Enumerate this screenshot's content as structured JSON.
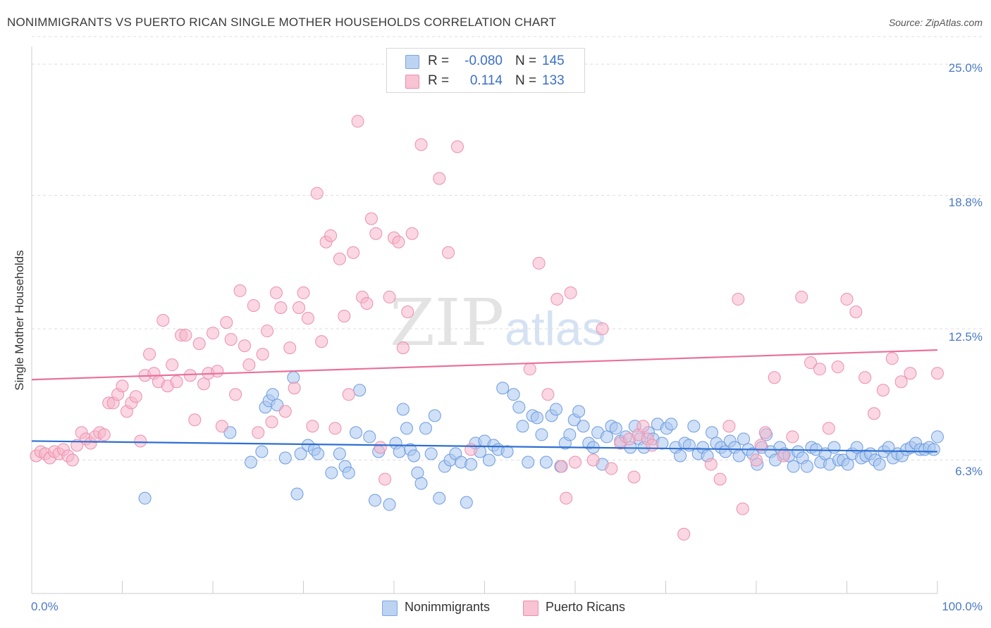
{
  "title": "NONIMMIGRANTS VS PUERTO RICAN SINGLE MOTHER HOUSEHOLDS CORRELATION CHART",
  "source": "Source: ZipAtlas.com",
  "watermark": {
    "zip": "ZIP",
    "atlas": "atlas"
  },
  "stats": {
    "rows": [
      {
        "r_label": "R =",
        "r_value": "-0.080",
        "n_label": "N =",
        "n_value": "145"
      },
      {
        "r_label": "R =",
        "r_value": "0.114",
        "n_label": "N =",
        "n_value": "133"
      }
    ]
  },
  "legend": {
    "items": [
      "Nonimmigrants",
      "Puerto Ricans"
    ]
  },
  "colors": {
    "blue_fill": "#a9c6ee",
    "blue_stroke": "#6e9be0",
    "blue_line": "#2f6fd0",
    "pink_fill": "#f6b6ca",
    "pink_stroke": "#ec8fad",
    "pink_line": "#e8729a",
    "tick_label": "#4a79c7",
    "grid": "#dddddd"
  },
  "chart_data": {
    "type": "scatter",
    "title": "NONIMMIGRANTS VS PUERTO RICAN SINGLE MOTHER HOUSEHOLDS CORRELATION CHART",
    "xlabel": "",
    "ylabel": "Single Mother Households",
    "x_tick_labels": [
      "0.0%",
      "100.0%"
    ],
    "y_tick_labels": [
      "6.3%",
      "12.5%",
      "18.8%",
      "25.0%"
    ],
    "xlim": [
      0,
      100
    ],
    "ylim": [
      0,
      26.3
    ],
    "grid": true,
    "series": [
      {
        "name": "Nonimmigrants",
        "color": "#a9c6ee",
        "trend": [
          [
            0,
            7.2
          ],
          [
            100,
            6.7
          ]
        ],
        "points": [
          [
            12.5,
            4.5
          ],
          [
            21.9,
            7.6
          ],
          [
            24.2,
            6.2
          ],
          [
            25.4,
            6.7
          ],
          [
            25.8,
            8.8
          ],
          [
            26.2,
            9.1
          ],
          [
            26.6,
            9.4
          ],
          [
            27.1,
            8.9
          ],
          [
            28.0,
            6.4
          ],
          [
            28.9,
            10.2
          ],
          [
            29.3,
            4.7
          ],
          [
            29.7,
            6.6
          ],
          [
            30.5,
            7.0
          ],
          [
            31.2,
            6.8
          ],
          [
            31.6,
            6.6
          ],
          [
            33.1,
            5.7
          ],
          [
            34.0,
            6.6
          ],
          [
            34.6,
            6.0
          ],
          [
            35.0,
            5.7
          ],
          [
            35.8,
            7.6
          ],
          [
            36.2,
            9.6
          ],
          [
            37.3,
            7.4
          ],
          [
            37.9,
            4.4
          ],
          [
            38.3,
            6.7
          ],
          [
            39.5,
            4.2
          ],
          [
            40.2,
            7.1
          ],
          [
            40.6,
            6.7
          ],
          [
            41.0,
            8.7
          ],
          [
            41.4,
            7.8
          ],
          [
            41.8,
            6.8
          ],
          [
            42.2,
            6.5
          ],
          [
            42.6,
            5.7
          ],
          [
            43.0,
            5.2
          ],
          [
            43.5,
            7.8
          ],
          [
            44.1,
            6.6
          ],
          [
            44.5,
            8.4
          ],
          [
            45.0,
            4.5
          ],
          [
            45.6,
            6.0
          ],
          [
            46.2,
            6.3
          ],
          [
            46.8,
            6.6
          ],
          [
            47.4,
            6.2
          ],
          [
            48.0,
            4.3
          ],
          [
            48.5,
            6.1
          ],
          [
            49.0,
            7.1
          ],
          [
            49.5,
            6.7
          ],
          [
            50.0,
            7.2
          ],
          [
            50.5,
            6.3
          ],
          [
            51.0,
            7.0
          ],
          [
            51.5,
            6.8
          ],
          [
            52.0,
            9.7
          ],
          [
            52.5,
            6.7
          ],
          [
            53.2,
            9.4
          ],
          [
            53.8,
            8.8
          ],
          [
            54.2,
            7.9
          ],
          [
            54.8,
            6.2
          ],
          [
            55.3,
            8.4
          ],
          [
            55.8,
            8.3
          ],
          [
            56.3,
            7.5
          ],
          [
            56.8,
            6.2
          ],
          [
            57.4,
            8.4
          ],
          [
            57.9,
            8.7
          ],
          [
            58.4,
            6.0
          ],
          [
            58.9,
            7.1
          ],
          [
            59.4,
            7.5
          ],
          [
            59.9,
            8.2
          ],
          [
            60.4,
            8.6
          ],
          [
            60.9,
            7.9
          ],
          [
            61.5,
            7.1
          ],
          [
            62.0,
            6.9
          ],
          [
            62.5,
            7.6
          ],
          [
            63.0,
            6.1
          ],
          [
            63.5,
            7.4
          ],
          [
            64.0,
            7.9
          ],
          [
            64.5,
            7.8
          ],
          [
            65.0,
            7.2
          ],
          [
            65.6,
            7.4
          ],
          [
            66.1,
            6.9
          ],
          [
            66.6,
            7.9
          ],
          [
            67.1,
            7.3
          ],
          [
            67.6,
            6.9
          ],
          [
            68.1,
            7.6
          ],
          [
            68.6,
            7.3
          ],
          [
            69.1,
            8.0
          ],
          [
            69.6,
            7.1
          ],
          [
            70.1,
            7.8
          ],
          [
            70.6,
            8.0
          ],
          [
            71.1,
            6.9
          ],
          [
            71.6,
            6.5
          ],
          [
            72.1,
            7.1
          ],
          [
            72.6,
            7.0
          ],
          [
            73.1,
            7.9
          ],
          [
            73.6,
            6.6
          ],
          [
            74.1,
            6.9
          ],
          [
            74.6,
            6.5
          ],
          [
            75.1,
            7.6
          ],
          [
            75.6,
            7.1
          ],
          [
            76.1,
            6.9
          ],
          [
            76.6,
            6.7
          ],
          [
            77.1,
            7.2
          ],
          [
            77.6,
            6.9
          ],
          [
            78.1,
            6.5
          ],
          [
            78.6,
            7.3
          ],
          [
            79.1,
            6.8
          ],
          [
            79.6,
            6.6
          ],
          [
            80.1,
            6.1
          ],
          [
            80.6,
            6.9
          ],
          [
            81.1,
            7.5
          ],
          [
            81.6,
            6.7
          ],
          [
            82.1,
            6.3
          ],
          [
            82.6,
            6.9
          ],
          [
            83.1,
            6.6
          ],
          [
            83.6,
            6.5
          ],
          [
            84.1,
            6.0
          ],
          [
            84.6,
            6.7
          ],
          [
            85.1,
            6.4
          ],
          [
            85.6,
            6.0
          ],
          [
            86.1,
            6.9
          ],
          [
            86.6,
            6.8
          ],
          [
            87.1,
            6.2
          ],
          [
            87.6,
            6.6
          ],
          [
            88.1,
            6.1
          ],
          [
            88.6,
            6.9
          ],
          [
            89.1,
            6.3
          ],
          [
            89.6,
            6.3
          ],
          [
            90.1,
            6.1
          ],
          [
            90.6,
            6.6
          ],
          [
            91.1,
            6.9
          ],
          [
            91.6,
            6.4
          ],
          [
            92.1,
            6.5
          ],
          [
            92.6,
            6.6
          ],
          [
            93.1,
            6.3
          ],
          [
            93.6,
            6.1
          ],
          [
            94.1,
            6.7
          ],
          [
            94.6,
            6.9
          ],
          [
            95.1,
            6.4
          ],
          [
            95.6,
            6.6
          ],
          [
            96.1,
            6.5
          ],
          [
            96.6,
            6.8
          ],
          [
            97.1,
            6.9
          ],
          [
            97.6,
            7.1
          ],
          [
            98.1,
            6.8
          ],
          [
            98.6,
            6.8
          ],
          [
            99.1,
            6.9
          ],
          [
            99.6,
            6.8
          ],
          [
            100.0,
            7.4
          ]
        ]
      },
      {
        "name": "Puerto Ricans",
        "color": "#f6b6ca",
        "trend": [
          [
            0,
            10.1
          ],
          [
            100,
            11.5
          ]
        ],
        "points": [
          [
            0.5,
            6.5
          ],
          [
            1.0,
            6.7
          ],
          [
            1.5,
            6.6
          ],
          [
            2.0,
            6.4
          ],
          [
            2.5,
            6.7
          ],
          [
            3.0,
            6.6
          ],
          [
            3.5,
            6.8
          ],
          [
            4.0,
            6.5
          ],
          [
            4.5,
            6.3
          ],
          [
            5.0,
            7.0
          ],
          [
            5.5,
            7.6
          ],
          [
            6.0,
            7.3
          ],
          [
            6.5,
            7.1
          ],
          [
            7.0,
            7.4
          ],
          [
            7.5,
            7.6
          ],
          [
            8.0,
            7.5
          ],
          [
            8.5,
            9.0
          ],
          [
            9.0,
            9.0
          ],
          [
            9.5,
            9.4
          ],
          [
            10.0,
            9.8
          ],
          [
            10.5,
            8.6
          ],
          [
            11.0,
            9.0
          ],
          [
            11.5,
            9.3
          ],
          [
            12.0,
            7.2
          ],
          [
            12.5,
            10.3
          ],
          [
            13.0,
            11.3
          ],
          [
            13.5,
            10.4
          ],
          [
            14.0,
            10.0
          ],
          [
            14.5,
            12.9
          ],
          [
            15.0,
            9.8
          ],
          [
            15.5,
            10.8
          ],
          [
            16.0,
            10.0
          ],
          [
            16.5,
            12.2
          ],
          [
            17.0,
            12.2
          ],
          [
            17.5,
            10.3
          ],
          [
            18.0,
            8.2
          ],
          [
            18.5,
            11.8
          ],
          [
            19.0,
            9.9
          ],
          [
            19.5,
            10.4
          ],
          [
            20.0,
            12.3
          ],
          [
            20.5,
            10.5
          ],
          [
            21.0,
            7.9
          ],
          [
            21.5,
            12.8
          ],
          [
            22.0,
            12.0
          ],
          [
            22.5,
            9.4
          ],
          [
            23.0,
            14.3
          ],
          [
            23.5,
            11.7
          ],
          [
            24.0,
            10.8
          ],
          [
            24.5,
            13.6
          ],
          [
            25.0,
            7.6
          ],
          [
            25.5,
            11.3
          ],
          [
            26.0,
            12.4
          ],
          [
            26.5,
            8.1
          ],
          [
            27.0,
            14.2
          ],
          [
            27.5,
            13.5
          ],
          [
            28.0,
            8.6
          ],
          [
            28.5,
            11.6
          ],
          [
            29.0,
            9.7
          ],
          [
            29.5,
            13.5
          ],
          [
            30.0,
            14.2
          ],
          [
            30.5,
            13.0
          ],
          [
            31.0,
            7.9
          ],
          [
            31.5,
            18.9
          ],
          [
            32.0,
            11.9
          ],
          [
            32.5,
            16.6
          ],
          [
            33.0,
            16.9
          ],
          [
            33.5,
            7.8
          ],
          [
            34.0,
            15.8
          ],
          [
            34.5,
            13.1
          ],
          [
            35.0,
            9.4
          ],
          [
            35.5,
            16.1
          ],
          [
            36.0,
            22.3
          ],
          [
            36.5,
            14.0
          ],
          [
            37.0,
            13.7
          ],
          [
            37.5,
            17.7
          ],
          [
            38.0,
            17.0
          ],
          [
            38.5,
            6.9
          ],
          [
            39.0,
            5.4
          ],
          [
            39.5,
            14.0
          ],
          [
            40.0,
            16.8
          ],
          [
            40.5,
            16.6
          ],
          [
            41.0,
            11.6
          ],
          [
            41.5,
            13.3
          ],
          [
            42.0,
            17.0
          ],
          [
            43.0,
            21.2
          ],
          [
            45.0,
            19.6
          ],
          [
            46.0,
            16.1
          ],
          [
            47.0,
            21.1
          ],
          [
            48.5,
            6.8
          ],
          [
            55.0,
            10.6
          ],
          [
            56.0,
            15.6
          ],
          [
            57.0,
            9.4
          ],
          [
            58.0,
            13.9
          ],
          [
            58.5,
            6.0
          ],
          [
            59.0,
            4.5
          ],
          [
            59.5,
            14.2
          ],
          [
            60.0,
            6.2
          ],
          [
            62.0,
            6.3
          ],
          [
            63.0,
            12.5
          ],
          [
            64.0,
            5.9
          ],
          [
            65.0,
            7.1
          ],
          [
            66.0,
            7.3
          ],
          [
            66.5,
            5.5
          ],
          [
            67.0,
            7.5
          ],
          [
            67.5,
            7.9
          ],
          [
            68.0,
            7.3
          ],
          [
            68.5,
            7.0
          ],
          [
            72.0,
            2.8
          ],
          [
            75.0,
            6.1
          ],
          [
            76.0,
            5.4
          ],
          [
            77.0,
            7.9
          ],
          [
            78.0,
            13.9
          ],
          [
            78.5,
            4.0
          ],
          [
            80.0,
            6.3
          ],
          [
            80.5,
            7.0
          ],
          [
            81.0,
            7.6
          ],
          [
            82.0,
            10.2
          ],
          [
            83.0,
            6.5
          ],
          [
            84.0,
            7.4
          ],
          [
            85.0,
            14.0
          ],
          [
            86.0,
            10.9
          ],
          [
            87.0,
            10.6
          ],
          [
            88.0,
            7.8
          ],
          [
            89.0,
            10.7
          ],
          [
            90.0,
            13.9
          ],
          [
            91.0,
            13.3
          ],
          [
            92.0,
            10.2
          ],
          [
            93.0,
            8.5
          ],
          [
            94.0,
            9.6
          ],
          [
            95.0,
            11.1
          ],
          [
            96.0,
            10.0
          ],
          [
            97.0,
            10.4
          ],
          [
            100.0,
            10.4
          ]
        ]
      }
    ]
  }
}
